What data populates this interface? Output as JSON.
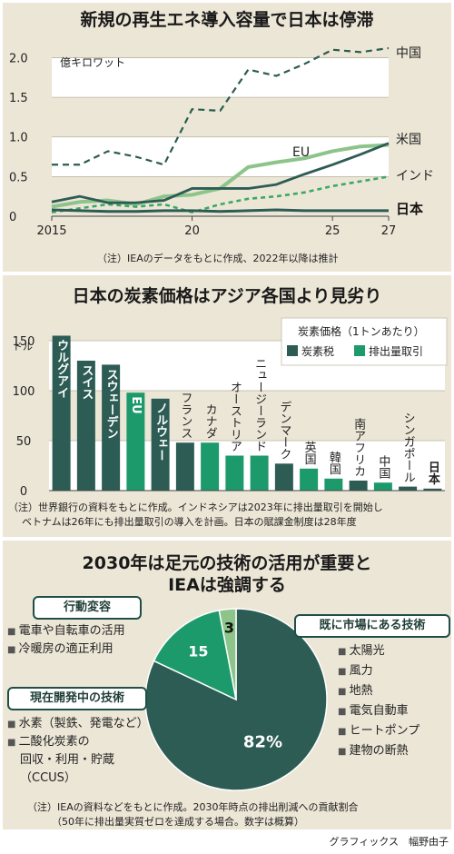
{
  "panel1": {
    "title": "新規の再生エネ導入容量で日本は停滞",
    "unit": "億キロワット",
    "note": "（注）IEAのデータをもとに作成、2022年以降は推計"
  },
  "panel2": {
    "title": "日本の炭素価格はアジア各国より見劣り",
    "unit": "ドル",
    "legend_title": "炭素価格（1トンあたり）",
    "note_lines": [
      "（注）世界銀行の資料をもとに作成。インドネシアは2023年に排出量取引を開始し",
      "ベトナムは26年にも排出量取引の導入を計画。日本の賦課金制度は28年度"
    ]
  },
  "panel3": {
    "title_lines": [
      "2030年は足元の技術の活用が重要と",
      "IEAは強調する"
    ],
    "box_behavior": {
      "header": "行動変容",
      "items": [
        "電車や自転車の活用",
        "冷暖房の適正利用"
      ]
    },
    "box_developing": {
      "header": "現在開発中の技術",
      "items": [
        "水素（製鉄、発電など）",
        "二酸化炭素の"
      ],
      "subitems": [
        "回収・利用・貯蔵",
        "（CCUS）"
      ]
    },
    "box_market": {
      "header": "既に市場にある技術",
      "items": [
        "太陽光",
        "風力",
        "地熱",
        "電気自動車",
        "ヒートポンプ",
        "建物の断熱"
      ]
    },
    "note_lines": [
      "（注）IEAの資料などをもとに作成。2030年時点の排出削減への貢献割合",
      "（50年に排出量実質ゼロを達成する場合。数字は概算）"
    ]
  },
  "credit": "グラフィックス　幅野由子",
  "colors": {
    "dark": "#2d5c55",
    "light": "#1d9a6c",
    "pale": "#8cc48a",
    "green2": "#3aa866",
    "dash": "#2b5c50",
    "bg": "#ece6d6"
  },
  "chart_data": [
    {
      "type": "line",
      "title": "新規の再生エネ導入容量で日本は停滞",
      "ylabel": "億キロワット",
      "ylim": [
        0,
        2.2
      ],
      "yticks": [
        0,
        0.5,
        1.0,
        1.5,
        2.0
      ],
      "ytick_labels": [
        "0",
        "0.5",
        "1.0",
        "1.5",
        "2.0"
      ],
      "xticks": [
        2015,
        2020,
        2025,
        2027
      ],
      "xtick_labels": [
        "2015",
        "20",
        "25",
        "27"
      ],
      "x": [
        2015,
        2016,
        2017,
        2018,
        2019,
        2020,
        2021,
        2022,
        2023,
        2024,
        2025,
        2026,
        2027
      ],
      "series": [
        {
          "name": "中国",
          "style": "dashed",
          "values": [
            0.65,
            0.65,
            0.82,
            0.75,
            0.65,
            1.35,
            1.33,
            1.85,
            1.77,
            1.92,
            2.1,
            2.07,
            2.12
          ]
        },
        {
          "name": "米国",
          "style": "solid",
          "values": [
            0.18,
            0.25,
            0.17,
            0.17,
            0.2,
            0.35,
            0.35,
            0.35,
            0.4,
            0.53,
            0.65,
            0.78,
            0.92
          ]
        },
        {
          "name": "EU",
          "style": "solid",
          "values": [
            0.12,
            0.18,
            0.2,
            0.15,
            0.25,
            0.27,
            0.35,
            0.62,
            0.68,
            0.73,
            0.82,
            0.88,
            0.9
          ]
        },
        {
          "name": "インド",
          "style": "dashed",
          "values": [
            0.05,
            0.1,
            0.15,
            0.12,
            0.15,
            0.05,
            0.15,
            0.22,
            0.25,
            0.3,
            0.38,
            0.44,
            0.5
          ]
        },
        {
          "name": "日本",
          "style": "solid",
          "values": [
            0.08,
            0.07,
            0.06,
            0.06,
            0.07,
            0.07,
            0.06,
            0.07,
            0.08,
            0.07,
            0.07,
            0.07,
            0.07
          ]
        }
      ]
    },
    {
      "type": "bar",
      "title": "日本の炭素価格はアジア各国より見劣り",
      "ylabel": "ドル",
      "ylim": [
        0,
        160
      ],
      "yticks": [
        0,
        50,
        100,
        150
      ],
      "legend": [
        "炭素税",
        "排出量取引"
      ],
      "categories": [
        "ウルグアイ",
        "スイス",
        "スウェーデン",
        "EU",
        "ノルウェー",
        "フランス",
        "カナダ",
        "オーストリア",
        "ニュージーランド",
        "デンマーク",
        "英国",
        "韓国",
        "南アフリカ",
        "中国",
        "シンガポール",
        "日本"
      ],
      "values": [
        155,
        130,
        126,
        98,
        92,
        48,
        48,
        35,
        35,
        27,
        22,
        12,
        10,
        8,
        4,
        2
      ],
      "kind": [
        "炭素税",
        "炭素税",
        "炭素税",
        "排出量取引",
        "炭素税",
        "炭素税",
        "排出量取引",
        "排出量取引",
        "排出量取引",
        "炭素税",
        "排出量取引",
        "排出量取引",
        "炭素税",
        "排出量取引",
        "炭素税",
        "炭素税"
      ]
    },
    {
      "type": "pie",
      "title": "2030年は足元の技術の活用が重要とIEAは強調する",
      "labels": [
        "既に市場にある技術",
        "現在開発中の技術",
        "行動変容"
      ],
      "values": [
        82,
        15,
        3
      ],
      "value_labels": [
        "82%",
        "15",
        "3"
      ]
    }
  ]
}
